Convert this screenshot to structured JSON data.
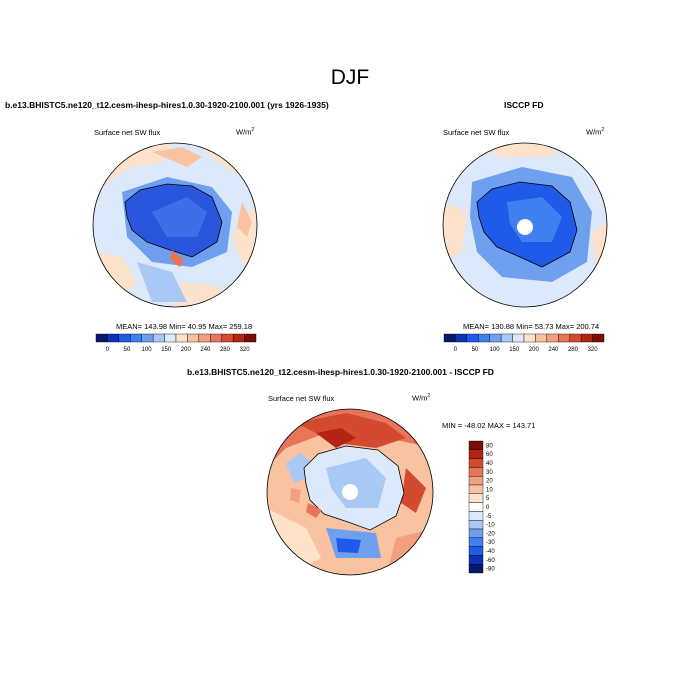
{
  "figure_title": "DJF",
  "panels": {
    "model": {
      "title": "b.e13.BHISTC5.ne120_t12.cesm-ihesp-hires1.0.30-1920-2100.001 (yrs 1926-1935)",
      "variable": "Surface net SW flux",
      "units": "W/m",
      "units_exp": "2",
      "stats": "MEAN= 143.98  Min= 40.95  Max= 259.18"
    },
    "obs": {
      "title": "ISCCP FD",
      "variable": "Surface net SW flux",
      "units": "W/m",
      "units_exp": "2",
      "stats": "MEAN= 130.88  Min= 53.73  Max= 200.74"
    },
    "diff": {
      "title": "b.e13.BHISTC5.ne120_t12.cesm-ihesp-hires1.0.30-1920-2100.001 - ISCCP FD",
      "variable": "Surface net SW flux",
      "units": "W/m",
      "units_exp": "2",
      "stats": "MIN = -48.02 MAX = 143.71"
    }
  },
  "colorbar_abs": {
    "labels": [
      "0",
      "50",
      "100",
      "150",
      "200",
      "240",
      "280",
      "320"
    ],
    "colors": [
      "#08186e",
      "#0a32b8",
      "#1f5ae8",
      "#3f7fef",
      "#6fa0f0",
      "#a9c9f5",
      "#dbe9fb",
      "#fde3cc",
      "#f9c3a2",
      "#f2a07f",
      "#e8745a",
      "#d44a30",
      "#b32415",
      "#7d0c06"
    ]
  },
  "colorbar_diff": {
    "labels": [
      "80",
      "60",
      "40",
      "30",
      "20",
      "10",
      "5",
      "0",
      "-5",
      "-10",
      "-20",
      "-30",
      "-40",
      "-60",
      "-80"
    ],
    "colors": [
      "#7d0c06",
      "#b32415",
      "#d44a30",
      "#e8745a",
      "#f2a07f",
      "#f9c3a2",
      "#fde3cc",
      "#ffffff",
      "#dbe9fb",
      "#a9c9f5",
      "#6fa0f0",
      "#3f7fef",
      "#1f5ae8",
      "#0a32b8",
      "#08186e"
    ]
  }
}
